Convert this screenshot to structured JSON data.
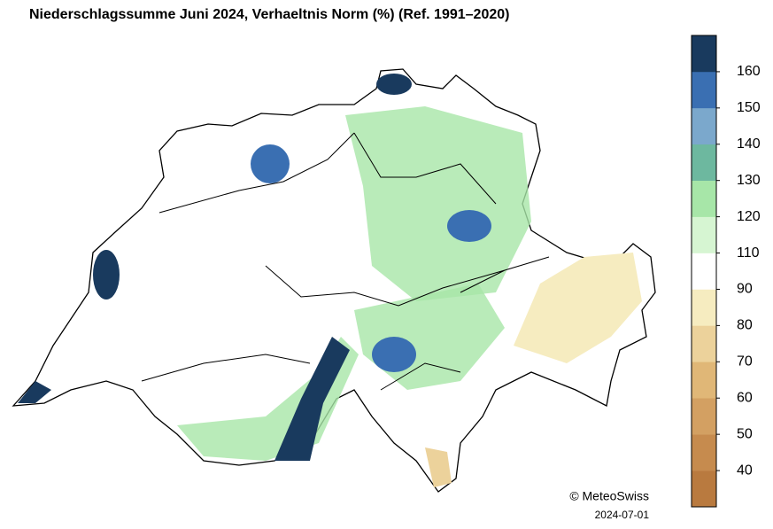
{
  "title": "Niederschlagssumme Juni 2024, Verhaeltnis Norm (%)   (Ref. 1991–2020)",
  "legend": {
    "colors": [
      "#b97a3f",
      "#c68b4e",
      "#d3a062",
      "#e0b777",
      "#ecd29b",
      "#f6ecc0",
      "#ffffff",
      "#d6f5d2",
      "#a7e6a8",
      "#6db89f",
      "#7ba8cc",
      "#3a6fb2",
      "#193a5e"
    ],
    "ticks": [
      40,
      50,
      60,
      70,
      80,
      90,
      110,
      120,
      130,
      140,
      150,
      160
    ]
  },
  "credit": "© MeteoSwiss",
  "date": "2024-07-01"
}
